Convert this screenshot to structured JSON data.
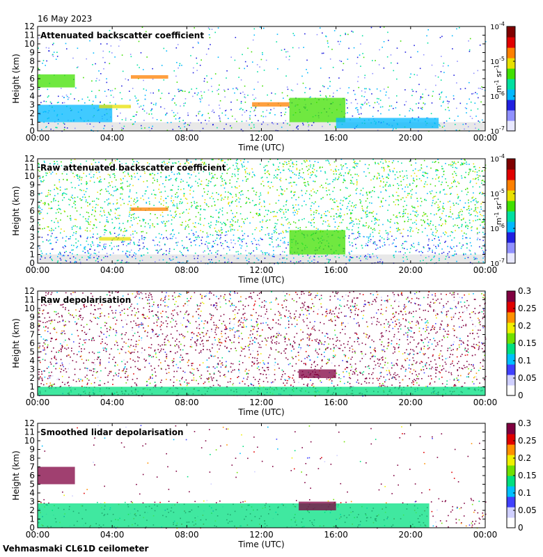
{
  "header": {
    "date": "16 May 2023"
  },
  "footer": {
    "instrument": "Vehmasmaki CL61D ceilometer"
  },
  "colors": {
    "log_colormap": [
      "#e8e8ff",
      "#9090ff",
      "#2020e0",
      "#00b8ff",
      "#00e0a0",
      "#40e000",
      "#e8e000",
      "#ff8000",
      "#e00000",
      "#800000"
    ],
    "lin_colormap": [
      "#ffffff",
      "#d0d0ff",
      "#4040ff",
      "#00c0ff",
      "#00e080",
      "#70e000",
      "#f0f000",
      "#ff9000",
      "#e00000",
      "#800040"
    ],
    "no_signal": "#d8d8d8"
  },
  "chart_data": [
    {
      "type": "heatmap",
      "title": "Attenuated backscatter coefficient",
      "xlabel": "Time (UTC)",
      "ylabel": "Height (km)",
      "xticks": [
        "00:00",
        "04:00",
        "08:00",
        "12:00",
        "16:00",
        "20:00",
        "00:00"
      ],
      "yticks": [
        "0",
        "1",
        "2",
        "3",
        "4",
        "5",
        "6",
        "7",
        "8",
        "9",
        "10",
        "11",
        "12"
      ],
      "ylim": [
        0,
        12
      ],
      "xlim_hours": [
        0,
        24
      ],
      "colorbar": {
        "scale": "log",
        "ticks": [
          "10-7",
          "10-6",
          "10-5",
          "10-4"
        ],
        "label": "m-1 sr-1"
      },
      "layers": [
        {
          "start_hour": 0,
          "end_hour": 4,
          "height_km": [
            3.0,
            1.0
          ],
          "level": 0.3
        },
        {
          "start_hour": 0,
          "end_hour": 2,
          "height_km": [
            6.5,
            5.0
          ],
          "level": 0.55
        },
        {
          "start_hour": 3.3,
          "end_hour": 5.0,
          "height_km": [
            3.0,
            2.6
          ],
          "level": 0.65
        },
        {
          "start_hour": 5.0,
          "end_hour": 7.0,
          "height_km": [
            6.4,
            6.0
          ],
          "level": 0.75
        },
        {
          "start_hour": 11.5,
          "end_hour": 13.5,
          "height_km": [
            3.3,
            2.8
          ],
          "level": 0.7
        },
        {
          "start_hour": 13.5,
          "end_hour": 16.5,
          "height_km": [
            3.8,
            1.0
          ],
          "level": 0.55
        },
        {
          "start_hour": 16.0,
          "end_hour": 21.5,
          "height_km": [
            1.5,
            0.3
          ],
          "level": 0.3
        }
      ]
    },
    {
      "type": "heatmap",
      "title": "Raw attenuated backscatter coefficient",
      "xlabel": "Time (UTC)",
      "ylabel": "Height (km)",
      "xticks": [
        "00:00",
        "04:00",
        "08:00",
        "12:00",
        "16:00",
        "20:00",
        "00:00"
      ],
      "yticks": [
        "0",
        "1",
        "2",
        "3",
        "4",
        "5",
        "6",
        "7",
        "8",
        "9",
        "10",
        "11",
        "12"
      ],
      "ylim": [
        0,
        12
      ],
      "xlim_hours": [
        0,
        24
      ],
      "colorbar": {
        "scale": "log",
        "ticks": [
          "10-7",
          "10-6",
          "10-5",
          "10-4"
        ],
        "label": "m-1 sr-1"
      },
      "layers": [
        {
          "start_hour": 3.3,
          "end_hour": 5.0,
          "height_km": [
            3.0,
            2.6
          ],
          "level": 0.65
        },
        {
          "start_hour": 5.0,
          "end_hour": 7.0,
          "height_km": [
            6.4,
            6.0
          ],
          "level": 0.7
        },
        {
          "start_hour": 13.5,
          "end_hour": 16.5,
          "height_km": [
            3.8,
            1.0
          ],
          "level": 0.55
        }
      ]
    },
    {
      "type": "heatmap",
      "title": "Raw depolarisation",
      "xlabel": "Time (UTC)",
      "ylabel": "Height (km)",
      "xticks": [
        "00:00",
        "04:00",
        "08:00",
        "12:00",
        "16:00",
        "20:00",
        "00:00"
      ],
      "yticks": [
        "0",
        "1",
        "2",
        "3",
        "4",
        "5",
        "6",
        "7",
        "8",
        "9",
        "10",
        "11",
        "12"
      ],
      "ylim": [
        0,
        12
      ],
      "xlim_hours": [
        0,
        24
      ],
      "colorbar": {
        "scale": "linear",
        "ticks": [
          "0",
          "0.05",
          "0.1",
          "0.15",
          "0.2",
          "0.25",
          "0.3"
        ],
        "range": [
          0,
          0.3
        ]
      },
      "layers": [
        {
          "start_hour": 14.0,
          "end_hour": 16.0,
          "height_km": [
            3.0,
            2.0
          ],
          "level": 0.95
        },
        {
          "start_hour": 0,
          "end_hour": 24,
          "height_km": [
            1.0,
            0
          ],
          "level": 0.45
        }
      ]
    },
    {
      "type": "heatmap",
      "title": "Smoothed lidar depolarisation",
      "xlabel": "Time (UTC)",
      "ylabel": "Height (km)",
      "xticks": [
        "00:00",
        "04:00",
        "08:00",
        "12:00",
        "16:00",
        "20:00",
        "00:00"
      ],
      "yticks": [
        "0",
        "1",
        "2",
        "3",
        "4",
        "5",
        "6",
        "7",
        "8",
        "9",
        "10",
        "11",
        "12"
      ],
      "ylim": [
        0,
        12
      ],
      "xlim_hours": [
        0,
        24
      ],
      "colorbar": {
        "scale": "linear",
        "ticks": [
          "0",
          "0.05",
          "0.1",
          "0.15",
          "0.2",
          "0.25",
          "0.3"
        ],
        "range": [
          0,
          0.3
        ]
      },
      "layers": [
        {
          "start_hour": 0,
          "end_hour": 2,
          "height_km": [
            7.0,
            5.0
          ],
          "level": 0.95
        },
        {
          "start_hour": 0,
          "end_hour": 21,
          "height_km": [
            2.8,
            0
          ],
          "level": 0.45
        },
        {
          "start_hour": 14.0,
          "end_hour": 16.0,
          "height_km": [
            3.0,
            2.0
          ],
          "level": 0.95
        }
      ]
    }
  ]
}
